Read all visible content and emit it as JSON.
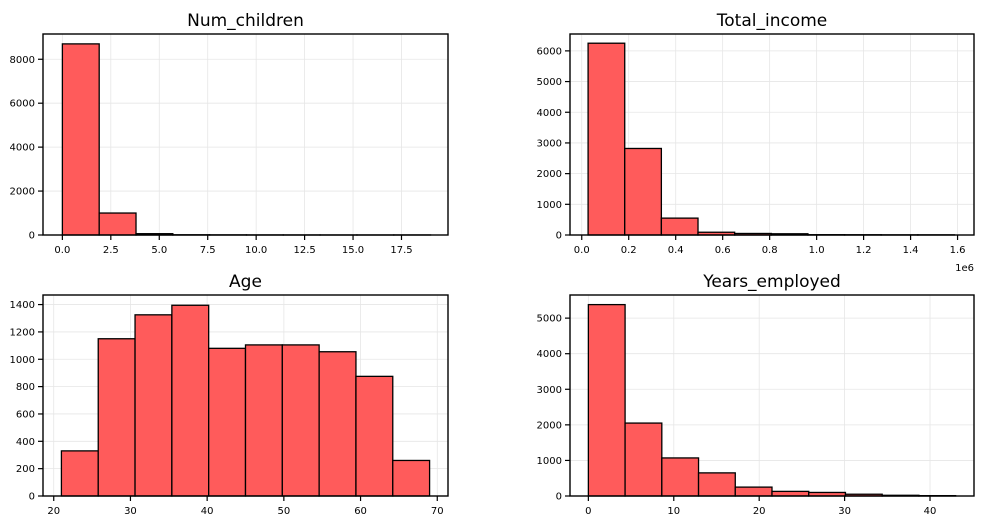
{
  "colors": {
    "bar_fill": "#ff5b5b",
    "bar_edge": "#000000",
    "grid": "#e6e6e6"
  },
  "chart_data": [
    {
      "type": "bar",
      "title": "Num_children",
      "bin_edges": [
        0,
        1.9,
        3.8,
        5.7,
        7.6,
        9.5,
        11.4,
        13.3,
        15.2,
        17.1,
        19.0
      ],
      "values": [
        8700,
        1000,
        60,
        10,
        5,
        3,
        2,
        1,
        1,
        2
      ],
      "xlim": [
        -1.0,
        19.9
      ],
      "ylim": [
        0,
        9150
      ],
      "xticks": [
        0,
        2.5,
        5,
        7.5,
        10,
        12.5,
        15,
        17.5
      ],
      "xtick_labels": [
        "0.0",
        "2.5",
        "5.0",
        "7.5",
        "10.0",
        "12.5",
        "15.0",
        "17.5"
      ],
      "yticks": [
        0,
        2000,
        4000,
        6000,
        8000
      ],
      "ytick_labels": [
        "0",
        "2000",
        "4000",
        "6000",
        "8000"
      ],
      "grid": true
    },
    {
      "type": "bar",
      "title": "Total_income",
      "offset_label": "1e6",
      "bin_edges": [
        0.027,
        0.183,
        0.339,
        0.495,
        0.651,
        0.807,
        0.963,
        1.119,
        1.275,
        1.431,
        1.587
      ],
      "values": [
        6250,
        2820,
        550,
        90,
        50,
        40,
        10,
        8,
        5,
        5
      ],
      "xlim": [
        -0.05,
        1.67
      ],
      "ylim": [
        0,
        6550
      ],
      "xticks": [
        0.0,
        0.2,
        0.4,
        0.6,
        0.8,
        1.0,
        1.2,
        1.4,
        1.6
      ],
      "xtick_labels": [
        "0.0",
        "0.2",
        "0.4",
        "0.6",
        "0.8",
        "1.0",
        "1.2",
        "1.4",
        "1.6"
      ],
      "yticks": [
        0,
        1000,
        2000,
        3000,
        4000,
        5000,
        6000
      ],
      "ytick_labels": [
        "0",
        "1000",
        "2000",
        "3000",
        "4000",
        "5000",
        "6000"
      ],
      "grid": true
    },
    {
      "type": "bar",
      "title": "Age",
      "bin_edges": [
        21,
        25.8,
        30.6,
        35.4,
        40.2,
        45.0,
        49.8,
        54.6,
        59.4,
        64.2,
        69.0
      ],
      "values": [
        330,
        1150,
        1325,
        1395,
        1080,
        1105,
        1105,
        1055,
        875,
        260
      ],
      "xlim": [
        18.6,
        71.4
      ],
      "ylim": [
        0,
        1470
      ],
      "xticks": [
        20,
        30,
        40,
        50,
        60,
        70
      ],
      "xtick_labels": [
        "20",
        "30",
        "40",
        "50",
        "60",
        "70"
      ],
      "yticks": [
        0,
        200,
        400,
        600,
        800,
        1000,
        1200,
        1400
      ],
      "ytick_labels": [
        "0",
        "200",
        "400",
        "600",
        "800",
        "1000",
        "1200",
        "1400"
      ],
      "grid": true
    },
    {
      "type": "bar",
      "title": "Years_employed",
      "bin_edges": [
        0,
        4.3,
        8.6,
        12.9,
        17.2,
        21.5,
        25.8,
        30.1,
        34.4,
        38.7,
        43.0
      ],
      "values": [
        5380,
        2050,
        1070,
        650,
        250,
        130,
        100,
        50,
        20,
        10
      ],
      "xlim": [
        -2.15,
        45.15
      ],
      "ylim": [
        0,
        5650
      ],
      "xticks": [
        0,
        10,
        20,
        30,
        40
      ],
      "xtick_labels": [
        "0",
        "10",
        "20",
        "30",
        "40"
      ],
      "yticks": [
        0,
        1000,
        2000,
        3000,
        4000,
        5000
      ],
      "ytick_labels": [
        "0",
        "1000",
        "2000",
        "3000",
        "4000",
        "5000"
      ],
      "grid": true
    }
  ]
}
